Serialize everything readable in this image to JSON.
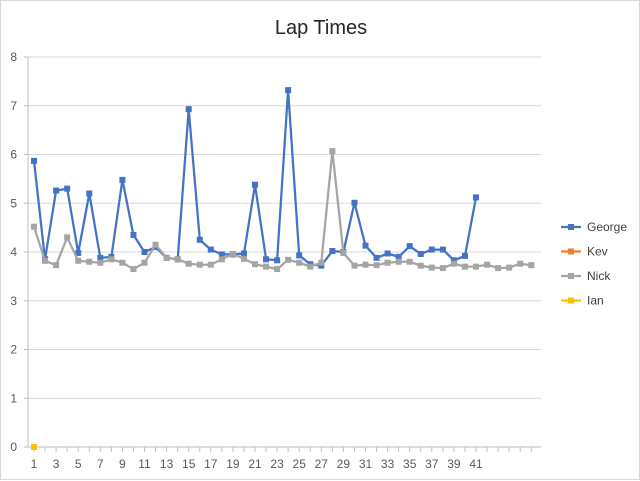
{
  "chart_data": {
    "type": "line",
    "title": "Lap Times",
    "xlabel": "",
    "ylabel": "",
    "ylim": [
      0,
      8
    ],
    "y_ticks": [
      0,
      1,
      2,
      3,
      4,
      5,
      6,
      7,
      8
    ],
    "x_tick_labels": [
      "1",
      "3",
      "5",
      "7",
      "9",
      "11",
      "13",
      "15",
      "17",
      "19",
      "21",
      "23",
      "25",
      "27",
      "29",
      "31",
      "33",
      "35",
      "37",
      "39",
      "41"
    ],
    "x_range": [
      1,
      46
    ],
    "grid": "horizontal",
    "legend_position": "right",
    "series": [
      {
        "name": "George",
        "color": "#4472c4",
        "marker": "square",
        "x": [
          1,
          2,
          3,
          4,
          5,
          6,
          7,
          8,
          9,
          10,
          11,
          12,
          13,
          14,
          15,
          16,
          17,
          18,
          19,
          20,
          21,
          22,
          23,
          24,
          25,
          26,
          27,
          28,
          29,
          30,
          31,
          32,
          33,
          34,
          35,
          36,
          37,
          38,
          39,
          40,
          41
        ],
        "values": [
          5.87,
          3.85,
          5.26,
          5.3,
          3.98,
          5.2,
          3.88,
          3.9,
          5.48,
          4.35,
          4.0,
          4.1,
          3.88,
          3.85,
          6.93,
          4.25,
          4.05,
          3.95,
          3.95,
          3.97,
          5.38,
          3.85,
          3.83,
          7.32,
          3.93,
          3.75,
          3.72,
          4.02,
          4.0,
          5.01,
          4.13,
          3.88,
          3.97,
          3.9,
          4.12,
          3.96,
          4.05,
          4.05,
          3.83,
          3.92,
          5.12
        ]
      },
      {
        "name": "Kev",
        "color": "#ed7d31",
        "marker": "square",
        "x": [],
        "values": []
      },
      {
        "name": "Nick",
        "color": "#a5a5a5",
        "marker": "square",
        "x": [
          1,
          2,
          3,
          4,
          5,
          6,
          7,
          8,
          9,
          10,
          11,
          12,
          13,
          14,
          15,
          16,
          17,
          18,
          19,
          20,
          21,
          22,
          23,
          24,
          25,
          26,
          27,
          28,
          29,
          30,
          31,
          32,
          33,
          34,
          35,
          36,
          37,
          38,
          39,
          40,
          41,
          42,
          43,
          44,
          45,
          46
        ],
        "values": [
          4.52,
          3.82,
          3.73,
          4.3,
          3.82,
          3.8,
          3.78,
          3.85,
          3.78,
          3.65,
          3.78,
          4.15,
          3.88,
          3.85,
          3.76,
          3.74,
          3.74,
          3.85,
          3.96,
          3.86,
          3.75,
          3.7,
          3.65,
          3.84,
          3.78,
          3.7,
          3.78,
          6.07,
          3.98,
          3.72,
          3.74,
          3.73,
          3.78,
          3.8,
          3.8,
          3.72,
          3.68,
          3.67,
          3.76,
          3.7,
          3.7,
          3.74,
          3.67,
          3.68,
          3.76,
          3.73
        ]
      },
      {
        "name": "Ian",
        "color": "#ffc000",
        "marker": "square",
        "x": [
          1
        ],
        "values": [
          0
        ]
      }
    ]
  }
}
